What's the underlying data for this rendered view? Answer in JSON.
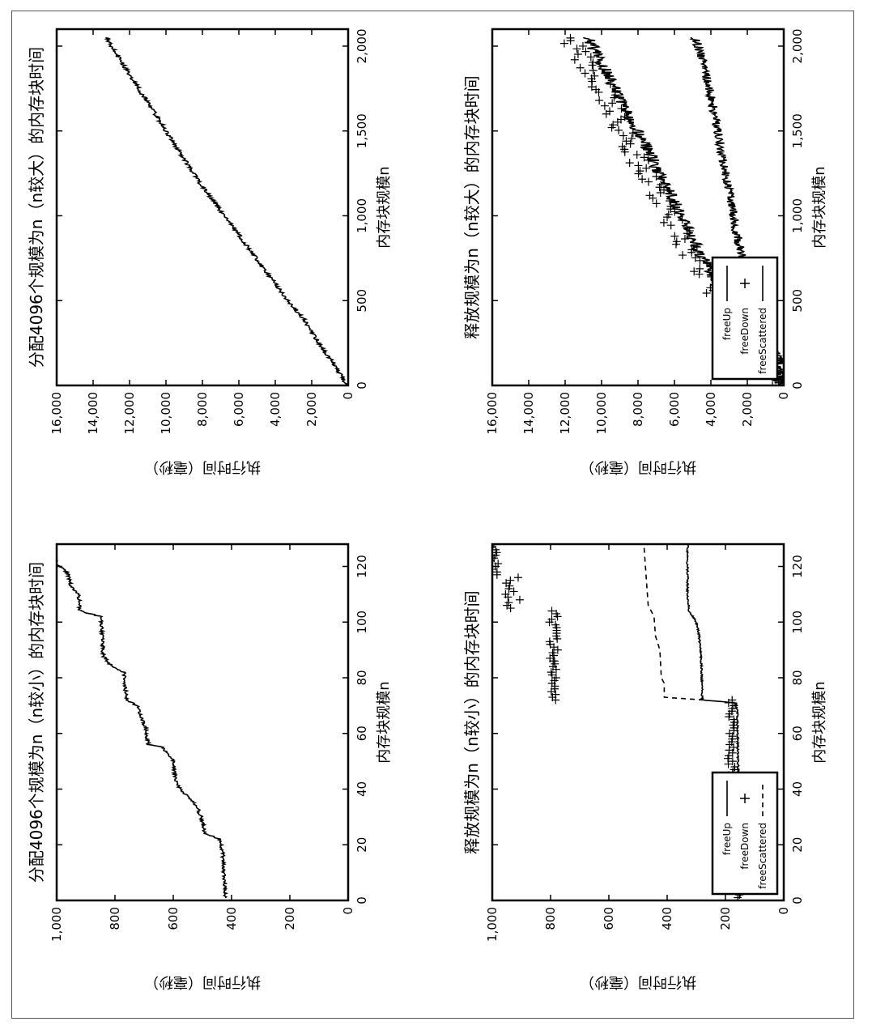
{
  "page": {
    "background": "#ffffff",
    "border_color": "#555555",
    "ink": "#000000"
  },
  "chart_data": [
    {
      "id": "alloc_small",
      "type": "line",
      "title": "分配4096个规模为n（n较小）的内存块时间",
      "xlabel": "内存块规模n",
      "ylabel": "执行时间（毫秒）",
      "xlim": [
        0,
        128
      ],
      "ylim": [
        0,
        1000
      ],
      "xticks": [
        "0",
        "20",
        "40",
        "60",
        "80",
        "100",
        "120"
      ],
      "yticks": [
        "0",
        "200",
        "400",
        "600",
        "800",
        "1,000"
      ],
      "legend": null,
      "series": [
        {
          "style": "line",
          "noise": 6,
          "points": [
            [
              1,
              420
            ],
            [
              8,
              425
            ],
            [
              16,
              430
            ],
            [
              22,
              440
            ],
            [
              24,
              490
            ],
            [
              30,
              505
            ],
            [
              34,
              520
            ],
            [
              40,
              575
            ],
            [
              42,
              590
            ],
            [
              50,
              600
            ],
            [
              55,
              635
            ],
            [
              56,
              685
            ],
            [
              62,
              695
            ],
            [
              70,
              725
            ],
            [
              72,
              760
            ],
            [
              82,
              770
            ],
            [
              85,
              820
            ],
            [
              88,
              840
            ],
            [
              96,
              845
            ],
            [
              102,
              850
            ],
            [
              104,
              920
            ],
            [
              110,
              925
            ],
            [
              113,
              950
            ],
            [
              118,
              965
            ],
            [
              121,
              1000
            ],
            [
              126,
              1020
            ]
          ]
        }
      ]
    },
    {
      "id": "alloc_large",
      "type": "line",
      "title": "分配4096个规模为n（n较大）的内存块时间",
      "xlabel": "内存块规模n",
      "ylabel": "执行时间（毫秒）",
      "xlim": [
        0,
        2100
      ],
      "ylim": [
        0,
        16000
      ],
      "xticks": [
        "0",
        "500",
        "1,000",
        "1,500",
        "2,000"
      ],
      "yticks": [
        "0",
        "2,000",
        "4,000",
        "6,000",
        "8,000",
        "10,000",
        "12,000",
        "14,000",
        "16,000"
      ],
      "legend": null,
      "series": [
        {
          "style": "line",
          "noise": 120,
          "points": [
            [
              0,
              120
            ],
            [
              100,
              600
            ],
            [
              200,
              1300
            ],
            [
              300,
              1900
            ],
            [
              400,
              2500
            ],
            [
              500,
              3300
            ],
            [
              600,
              4000
            ],
            [
              700,
              4700
            ],
            [
              800,
              5400
            ],
            [
              1000,
              6800
            ],
            [
              1200,
              8200
            ],
            [
              1400,
              9400
            ],
            [
              1600,
              10600
            ],
            [
              1800,
              11800
            ],
            [
              2000,
              13000
            ],
            [
              2050,
              13300
            ]
          ]
        }
      ]
    },
    {
      "id": "free_small",
      "type": "line",
      "title": "释放规模为n（n较小）的内存块时间",
      "xlabel": "内存块规模n",
      "ylabel": "执行时间（毫秒）",
      "xlim": [
        0,
        128
      ],
      "ylim": [
        0,
        1000
      ],
      "xticks": [
        "0",
        "20",
        "40",
        "60",
        "80",
        "100",
        "120"
      ],
      "yticks": [
        "0",
        "200",
        "400",
        "600",
        "800",
        "1,000"
      ],
      "legend": {
        "position": "bottom-left",
        "entries": [
          "freeUp",
          "freeDown",
          "freeScattered"
        ]
      },
      "series": [
        {
          "name": "freeUp",
          "style": "line",
          "noise": 3,
          "points": [
            [
              1,
              150
            ],
            [
              20,
              152
            ],
            [
              40,
              155
            ],
            [
              55,
              158
            ],
            [
              60,
              158
            ],
            [
              68,
              160
            ],
            [
              71,
              165
            ],
            [
              72,
              280
            ],
            [
              85,
              282
            ],
            [
              95,
              290
            ],
            [
              100,
              300
            ],
            [
              104,
              325
            ],
            [
              110,
              330
            ],
            [
              120,
              330
            ],
            [
              128,
              330
            ]
          ]
        },
        {
          "name": "freeDown",
          "style": "plus",
          "segments": [
            {
              "x": [
                1,
                24
              ],
              "step": 1,
              "y": 155,
              "noise": 8
            },
            {
              "x": [
                24,
                72
              ],
              "step": 1,
              "y": 180,
              "noise": 12
            },
            {
              "x": [
                72,
                86
              ],
              "step": 1,
              "y": 790,
              "noise": 10
            },
            {
              "x": [
                86,
                104
              ],
              "step": 1,
              "y": 790,
              "noise": 15
            },
            {
              "x": [
                105,
                116
              ],
              "step": 1,
              "y": 930,
              "noise": 25
            },
            {
              "x": [
                117,
                128
              ],
              "step": 1,
              "y": 990,
              "noise": 15
            }
          ]
        },
        {
          "name": "freeScattered",
          "style": "dashed",
          "noise": 0,
          "points": [
            [
              72,
              275
            ],
            [
              73,
              410
            ],
            [
              78,
              410
            ],
            [
              80,
              420
            ],
            [
              90,
              425
            ],
            [
              95,
              440
            ],
            [
              102,
              445
            ],
            [
              104,
              455
            ],
            [
              106,
              465
            ],
            [
              128,
              480
            ]
          ]
        }
      ]
    },
    {
      "id": "free_large",
      "type": "line",
      "title": "释放规模为n（n较大）的内存块时间",
      "xlabel": "内存块规模n",
      "ylabel": "执行时间（毫秒）",
      "xlim": [
        0,
        2100
      ],
      "ylim": [
        0,
        16000
      ],
      "xticks": [
        "0",
        "500",
        "1,000",
        "1,500",
        "2,000"
      ],
      "yticks": [
        "0",
        "2,000",
        "4,000",
        "6,000",
        "8,000",
        "10,000",
        "12,000",
        "14,000",
        "16,000"
      ],
      "legend": {
        "position": "bottom-left",
        "entries": [
          "freeUp",
          "freeDown",
          "freeScattered"
        ]
      },
      "series": [
        {
          "name": "freeUp",
          "style": "line",
          "noise": 350,
          "points": [
            [
              0,
              100
            ],
            [
              100,
              600
            ],
            [
              200,
              1300
            ],
            [
              400,
              2500
            ],
            [
              600,
              3700
            ],
            [
              800,
              4700
            ],
            [
              1000,
              5600
            ],
            [
              1200,
              6600
            ],
            [
              1400,
              7500
            ],
            [
              1600,
              8600
            ],
            [
              1800,
              9500
            ],
            [
              2000,
              10500
            ],
            [
              2050,
              10800
            ]
          ]
        },
        {
          "name": "freeDown",
          "style": "plus",
          "segments": [
            {
              "x": [
                0,
                2050
              ],
              "step": 16,
              "fn": "freeDown_large",
              "noise": 600
            }
          ],
          "points": [
            [
              0,
              100
            ],
            [
              100,
              700
            ],
            [
              200,
              1500
            ],
            [
              400,
              2800
            ],
            [
              600,
              4000
            ],
            [
              800,
              5200
            ],
            [
              1000,
              6200
            ],
            [
              1200,
              7300
            ],
            [
              1400,
              8300
            ],
            [
              1600,
              9300
            ],
            [
              1800,
              10200
            ],
            [
              2000,
              11400
            ],
            [
              2050,
              11800
            ]
          ]
        },
        {
          "name": "freeScattered",
          "style": "line",
          "noise": 250,
          "points": [
            [
              0,
              80
            ],
            [
              150,
              250
            ],
            [
              300,
              900
            ],
            [
              400,
              1300
            ],
            [
              500,
              1500
            ],
            [
              700,
              2100
            ],
            [
              900,
              2600
            ],
            [
              1100,
              2900
            ],
            [
              1300,
              3300
            ],
            [
              1500,
              3600
            ],
            [
              1700,
              4000
            ],
            [
              1900,
              4400
            ],
            [
              2000,
              4700
            ],
            [
              2050,
              4900
            ]
          ]
        }
      ]
    }
  ]
}
